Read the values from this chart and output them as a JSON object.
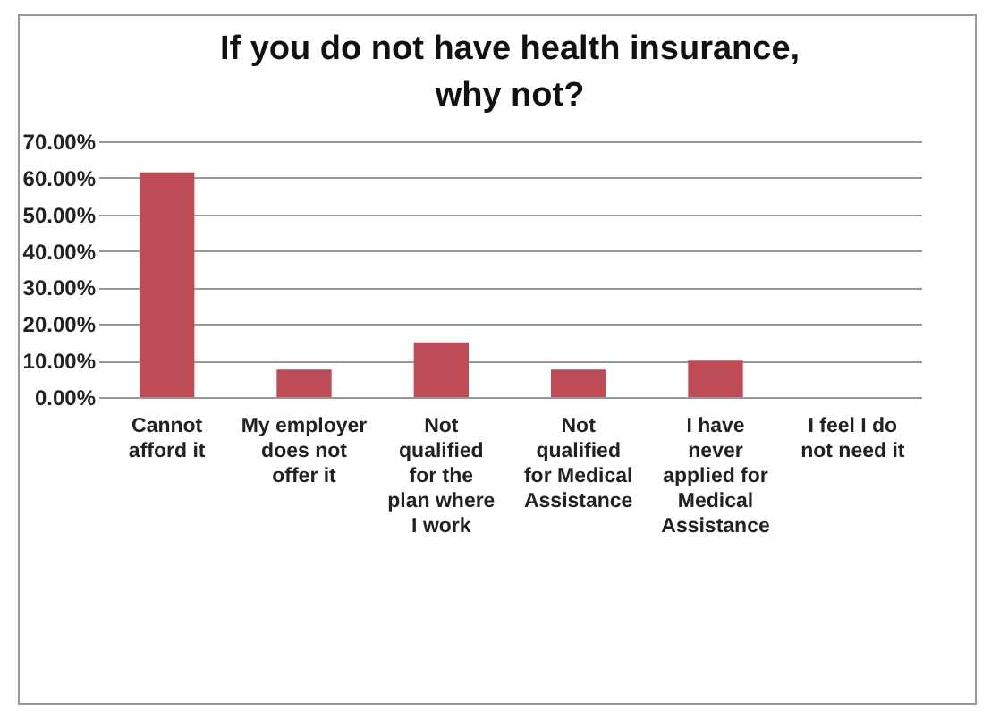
{
  "chart_data": {
    "type": "bar",
    "title": "If you do not have health insurance, why not?",
    "categories": [
      "Cannot afford it",
      "My employer does not offer it",
      "Not qualified for the plan where I work",
      "Not qualified for Medical Assistance",
      "I have never applied for Medical Assistance",
      "I feel I do not need it"
    ],
    "values": [
      61.5,
      7.5,
      15,
      7.5,
      10,
      0
    ],
    "color": "#be4b55",
    "ylim": [
      0,
      70
    ],
    "yticks": [
      {
        "value": 0,
        "label": "0.00%"
      },
      {
        "value": 10,
        "label": "10.00%"
      },
      {
        "value": 20,
        "label": "20.00%"
      },
      {
        "value": 30,
        "label": "30.00%"
      },
      {
        "value": 40,
        "label": "40.00%"
      },
      {
        "value": 50,
        "label": "50.00%"
      },
      {
        "value": 60,
        "label": "60.00%"
      },
      {
        "value": 70,
        "label": "70.00%"
      }
    ],
    "grid": "y"
  }
}
